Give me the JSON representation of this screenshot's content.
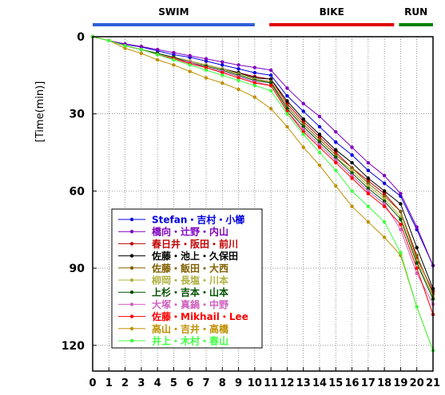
{
  "chart_data": {
    "type": "line",
    "title": "",
    "xlabel": "",
    "ylabel": "[Time(min)]",
    "xlim": [
      0,
      21
    ],
    "ylim": [
      0,
      130
    ],
    "y_inverted": true,
    "x_ticks": [
      0,
      1,
      2,
      3,
      4,
      5,
      6,
      7,
      8,
      9,
      10,
      11,
      12,
      13,
      14,
      15,
      16,
      17,
      18,
      19,
      20,
      21
    ],
    "y_ticks": [
      0,
      30,
      60,
      90,
      120
    ],
    "grid": "dotted",
    "legend_position": "bottom-left",
    "segments": [
      {
        "label": "SWIM",
        "from": 0,
        "to": 10,
        "color": "#3060d8"
      },
      {
        "label": "BIKE",
        "from": 10.9,
        "to": 18.6,
        "color": "#e00000"
      },
      {
        "label": "RUN",
        "from": 18.9,
        "to": 21,
        "color": "#008000"
      }
    ],
    "x": [
      0,
      1,
      2,
      3,
      4,
      5,
      6,
      7,
      8,
      9,
      10,
      11,
      12,
      13,
      14,
      15,
      16,
      17,
      18,
      19,
      20,
      21
    ],
    "series": [
      {
        "name": "Stefan・吉村・小櫛",
        "color": "#0000e0",
        "values": [
          0,
          1.5,
          3,
          4,
          5.5,
          7,
          8,
          9.5,
          11,
          12.5,
          14,
          15,
          23,
          29,
          35,
          41,
          46,
          52,
          57,
          62,
          75,
          89
        ]
      },
      {
        "name": "橋向・辻野・内山",
        "color": "#8000c0",
        "values": [
          0,
          1.5,
          2.8,
          3.8,
          5,
          6.2,
          7.4,
          8.6,
          9.8,
          11,
          12,
          13,
          20,
          26,
          31,
          37,
          43,
          49,
          54,
          61,
          74,
          89
        ]
      },
      {
        "name": "春日井・阪田・前川",
        "color": "#c00000",
        "values": [
          0,
          1.5,
          3.5,
          5,
          6.5,
          8,
          9.5,
          11,
          12.5,
          14,
          15.5,
          16.5,
          26,
          33,
          39,
          45,
          51,
          56,
          61,
          68,
          86,
          99
        ]
      },
      {
        "name": "佐藤・池上・久保田",
        "color": "#000000",
        "values": [
          0,
          1.5,
          3.5,
          5,
          6.5,
          8,
          9.5,
          11,
          12.5,
          14,
          16,
          16.5,
          25,
          32,
          38,
          44,
          49,
          55,
          60,
          65,
          82,
          98
        ]
      },
      {
        "name": "佐藤・飯田・大西",
        "color": "#806000",
        "values": [
          0,
          1.5,
          3.5,
          5,
          6.5,
          8,
          9.5,
          11,
          12.5,
          14.5,
          16.5,
          17.5,
          27,
          34,
          40,
          46,
          51,
          57,
          62,
          68,
          85,
          100
        ]
      },
      {
        "name": "柳岡・長塩・川本",
        "color": "#b0b040",
        "values": [
          0,
          1.5,
          3.5,
          5,
          6.5,
          8,
          9.5,
          11,
          12.5,
          14.5,
          16.5,
          18,
          28,
          35,
          41,
          47,
          52,
          58,
          63,
          70,
          87,
          101
        ]
      },
      {
        "name": "上杉・吉本・山本",
        "color": "#005000",
        "values": [
          0,
          1.5,
          3.5,
          5,
          6.5,
          8,
          10,
          11.5,
          13,
          15,
          17,
          18,
          28,
          35,
          41,
          47,
          53,
          59,
          64,
          71,
          88,
          102
        ]
      },
      {
        "name": "大塚・真鍋・中野",
        "color": "#d060c0",
        "values": [
          0,
          1.5,
          3.5,
          5,
          7,
          8.5,
          10,
          12,
          13.5,
          15.5,
          17.5,
          19,
          29,
          36,
          42,
          48,
          54,
          60,
          65,
          75,
          92,
          104
        ]
      },
      {
        "name": "佐藤・Mikhail・Lee",
        "color": "#ff0000",
        "values": [
          0,
          1.5,
          3.5,
          5,
          7,
          8.5,
          10.5,
          12,
          14,
          16,
          18,
          19,
          29,
          37,
          43,
          49,
          55,
          61,
          66,
          73,
          90,
          108
        ]
      },
      {
        "name": "高山・吉井・高橋",
        "color": "#c09000",
        "values": [
          0,
          1.5,
          4.5,
          6.5,
          9,
          11,
          13.5,
          16,
          18,
          20.5,
          23.5,
          28,
          35,
          43,
          50,
          58,
          66,
          72,
          78,
          85,
          105,
          122
        ]
      },
      {
        "name": "井上・木村・春山",
        "color": "#40ff40",
        "values": [
          0,
          1.5,
          3.5,
          5,
          7,
          9,
          11,
          13,
          15,
          17,
          19,
          21,
          30,
          38,
          45,
          52,
          60,
          66,
          72,
          84,
          105,
          122
        ]
      }
    ]
  }
}
